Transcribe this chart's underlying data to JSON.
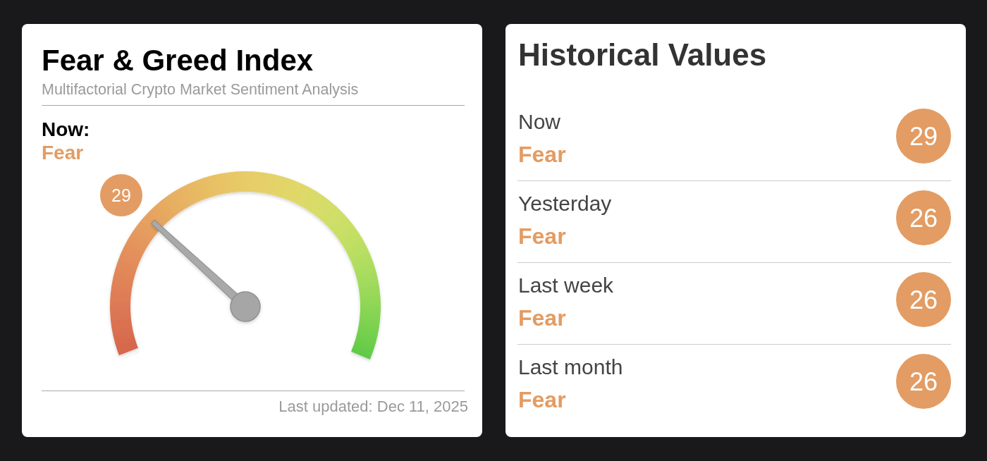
{
  "chart_data": [
    {
      "type": "other",
      "title": "Fear & Greed Index",
      "subtitle": "Multifactorial Crypto Market Sentiment Analysis",
      "values": [
        29
      ],
      "data_labels": true,
      "color": "#e39c63",
      "annotations": [
        "Now:",
        "Fear",
        "Last updated: Dec 11, 2025"
      ]
    },
    {
      "type": "other",
      "title": "Historical Values",
      "categories": [
        "Now",
        "Yesterday",
        "Last week",
        "Last month"
      ],
      "values": [
        29,
        26,
        26,
        26
      ],
      "data_labels": true,
      "color": "#e39c63",
      "annotations": [
        "Fear",
        "Fear",
        "Fear",
        "Fear"
      ]
    }
  ]
}
